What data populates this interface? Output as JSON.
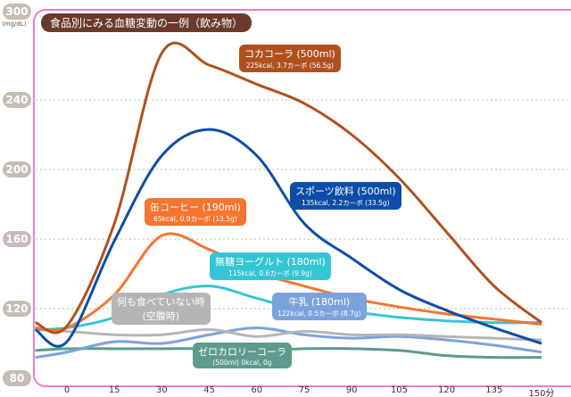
{
  "chart_data": {
    "type": "line",
    "title": "食品別にみる血糖変動の一例（飲み物）",
    "ylabel": "(mg/dL)",
    "ylim": [
      80,
      300
    ],
    "yticks": [
      300,
      240,
      200,
      160,
      120,
      80
    ],
    "xlim": [
      -10,
      150
    ],
    "xticks": [
      "0",
      "15",
      "30",
      "45",
      "60",
      "75",
      "90",
      "105",
      "120",
      "135",
      "150分"
    ],
    "x": [
      -10,
      0,
      15,
      30,
      45,
      60,
      75,
      90,
      105,
      120,
      135,
      150
    ],
    "grid": "dotted-horizontal",
    "series": [
      {
        "name": "コカコーラ (500ml)",
        "note": "225kcal, 3.7カーボ (56.5g)",
        "color": "#b0501e",
        "values": [
          112,
          110,
          169,
          267,
          260,
          249,
          238,
          220,
          195,
          164,
          133,
          112
        ]
      },
      {
        "name": "スポーツ飲料 (500ml)",
        "note": "135kcal, 2.2カーボ (33.5g)",
        "color": "#0d4da8",
        "values": [
          108,
          101,
          159,
          208,
          223,
          208,
          169,
          149,
          131,
          119,
          109,
          100
        ]
      },
      {
        "name": "缶コーヒー (190ml)",
        "note": "65kcal, 0.9カーボ (13.5g)",
        "color": "#f57530",
        "values": [
          109,
          109,
          128,
          162,
          154,
          141,
          133,
          126,
          121,
          117,
          114,
          111
        ]
      },
      {
        "name": "無糖ヨーグルト (180ml)",
        "note": "115kcal, 0.6カーボ (9.9g)",
        "color": "#35c5d5",
        "values": [
          108,
          109,
          115,
          128,
          133,
          126,
          119,
          118,
          115,
          113,
          112,
          112
        ]
      },
      {
        "name": "何も食べていない時",
        "note": "(空腹時)",
        "color": "#b5b5b5",
        "values": [
          108,
          107,
          105,
          105,
          108,
          104,
          107,
          105,
          105,
          104,
          103,
          102
        ]
      },
      {
        "name": "牛乳 (180ml)",
        "note": "122kcal, 0.5カーボ (8.7g)",
        "color": "#7ba3db",
        "values": [
          92,
          95,
          101,
          100,
          105,
          109,
          105,
          103,
          104,
          102,
          99,
          95
        ]
      },
      {
        "name": "ゼロカロリーコーラ",
        "note": "(500ml) 0kcal, 0g",
        "color": "#5e9a8e",
        "values": [
          96,
          97,
          97,
          97,
          97,
          96,
          97,
          97,
          96,
          93,
          92,
          92
        ]
      }
    ]
  }
}
